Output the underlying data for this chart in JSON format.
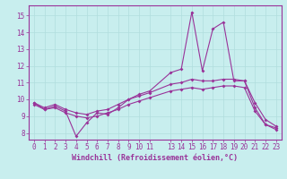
{
  "xlabel": "Windchill (Refroidissement éolien,°C)",
  "bg_color": "#c8eeee",
  "grid_color": "#b0dddd",
  "line_color": "#993399",
  "x_ticks": [
    0,
    1,
    2,
    3,
    4,
    5,
    6,
    7,
    8,
    9,
    10,
    11,
    13,
    14,
    15,
    16,
    17,
    18,
    19,
    20,
    21,
    22,
    23
  ],
  "ylim": [
    7.6,
    15.6
  ],
  "xlim": [
    -0.5,
    23.5
  ],
  "yticks": [
    8,
    9,
    10,
    11,
    12,
    13,
    14,
    15
  ],
  "line1_x": [
    0,
    1,
    2,
    3,
    4,
    5,
    6,
    7,
    8,
    9,
    10,
    11,
    13,
    14,
    15,
    16,
    17,
    18,
    19,
    20,
    21,
    22,
    23
  ],
  "line1_y": [
    9.8,
    9.4,
    9.6,
    9.3,
    7.8,
    8.6,
    9.2,
    9.1,
    9.5,
    10.0,
    10.3,
    10.5,
    11.6,
    11.8,
    15.2,
    11.7,
    14.2,
    14.6,
    11.1,
    11.1,
    9.5,
    8.5,
    8.3
  ],
  "line2_x": [
    0,
    1,
    2,
    3,
    4,
    5,
    6,
    7,
    8,
    9,
    10,
    11,
    13,
    14,
    15,
    16,
    17,
    18,
    19,
    20,
    21,
    22,
    23
  ],
  "line2_y": [
    9.8,
    9.5,
    9.7,
    9.4,
    9.2,
    9.1,
    9.3,
    9.4,
    9.7,
    10.0,
    10.2,
    10.4,
    10.9,
    11.0,
    11.2,
    11.1,
    11.1,
    11.2,
    11.2,
    11.1,
    9.8,
    8.8,
    8.4
  ],
  "line3_x": [
    0,
    1,
    2,
    3,
    4,
    5,
    6,
    7,
    8,
    9,
    10,
    11,
    13,
    14,
    15,
    16,
    17,
    18,
    19,
    20,
    21,
    22,
    23
  ],
  "line3_y": [
    9.7,
    9.4,
    9.5,
    9.2,
    9.0,
    8.9,
    9.0,
    9.2,
    9.4,
    9.7,
    9.9,
    10.1,
    10.5,
    10.6,
    10.7,
    10.6,
    10.7,
    10.8,
    10.8,
    10.7,
    9.3,
    8.5,
    8.2
  ],
  "tick_fontsize": 5.5,
  "xlabel_fontsize": 6.0,
  "marker_size": 2.0,
  "linewidth": 0.8
}
